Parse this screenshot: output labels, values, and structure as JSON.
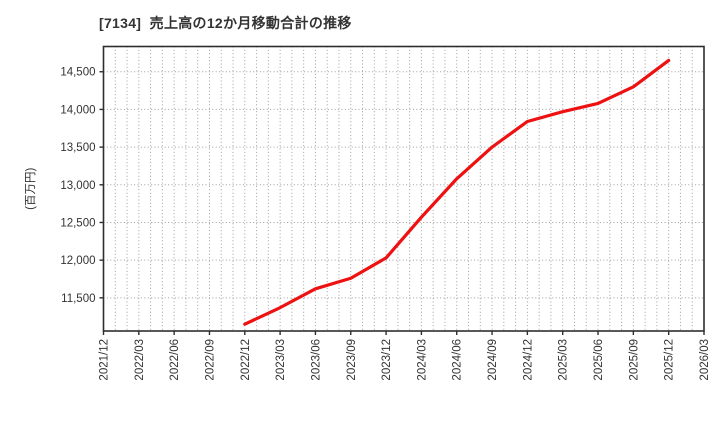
{
  "header": {
    "title": "[7134]  売上高の12か月移動合計の推移"
  },
  "chart_data": {
    "type": "line",
    "title": "[7134]  売上高の12か月移動合計の推移",
    "ylabel": "(百万円)",
    "xlabel": "",
    "legend": "none",
    "x_tick_labels": [
      "2021/12",
      "2022/03",
      "2022/06",
      "2022/09",
      "2022/12",
      "2023/03",
      "2023/06",
      "2023/09",
      "2023/12",
      "2024/03",
      "2024/06",
      "2024/09",
      "2024/12",
      "2025/03",
      "2025/06",
      "2025/09",
      "2025/12",
      "2026/03"
    ],
    "x_axis": {
      "start": "2021/12",
      "end": "2026/03",
      "minor_grid_unit": "month",
      "tick_unit": "quarter"
    },
    "y_ticks": [
      11500,
      12000,
      12500,
      13000,
      13500,
      14000,
      14500
    ],
    "ylim": [
      11060,
      14835
    ],
    "grid": {
      "style": "dotted",
      "color": "#9e9e9e",
      "horizontal": true,
      "vertical": true
    },
    "axis_color": "#2e2e2e",
    "text_color": "#333333",
    "series": [
      {
        "name": "売上高の12か月移動合計",
        "color": "#ee1111",
        "line_width": 3.2,
        "points": [
          {
            "x": "2022/12",
            "y": 11150
          },
          {
            "x": "2023/03",
            "y": 11370
          },
          {
            "x": "2023/06",
            "y": 11620
          },
          {
            "x": "2023/09",
            "y": 11760
          },
          {
            "x": "2023/12",
            "y": 12030
          },
          {
            "x": "2024/03",
            "y": 12570
          },
          {
            "x": "2024/06",
            "y": 13080
          },
          {
            "x": "2024/09",
            "y": 13500
          },
          {
            "x": "2024/12",
            "y": 13840
          },
          {
            "x": "2025/03",
            "y": 13970
          },
          {
            "x": "2025/06",
            "y": 14080
          },
          {
            "x": "2025/09",
            "y": 14300
          },
          {
            "x": "2025/12",
            "y": 14650
          }
        ]
      }
    ]
  }
}
